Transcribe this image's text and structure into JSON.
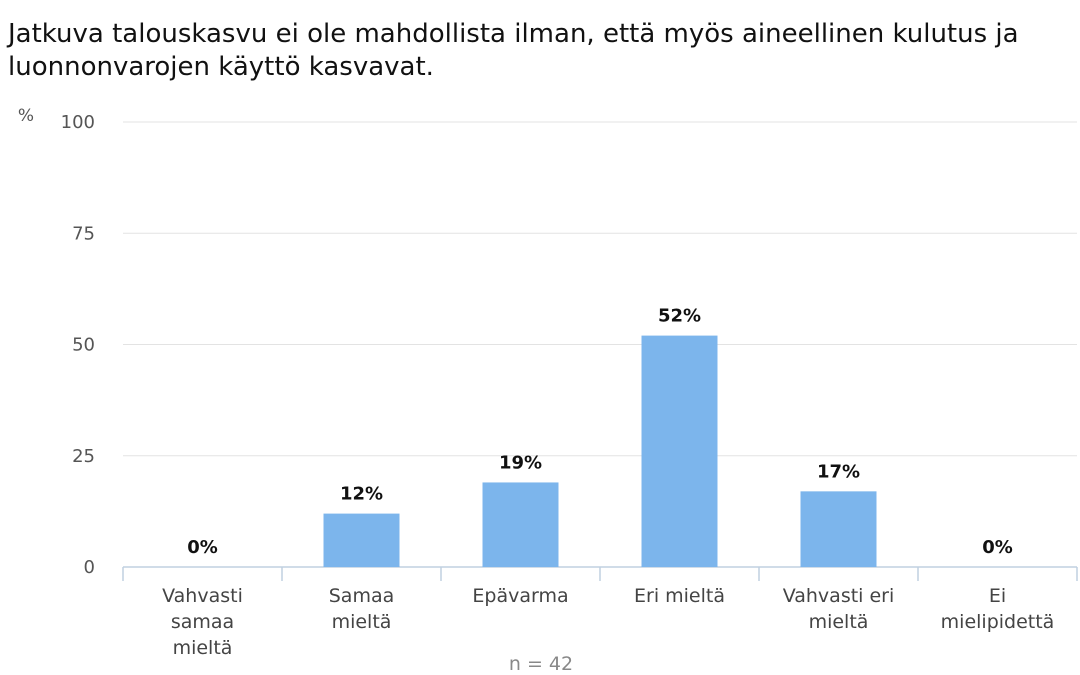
{
  "chart_data": {
    "type": "bar",
    "title": "Jatkuva talouskasvu ei ole mahdollista ilman, että myös aineellinen kulutus ja luonnonvarojen käyttö kasvavat.",
    "ylabel": "%",
    "ylim": [
      0,
      100
    ],
    "yticks": [
      0,
      25,
      50,
      75,
      100
    ],
    "grid": true,
    "categories": [
      [
        "Vahvasti",
        "samaa",
        "mieltä"
      ],
      [
        "Samaa",
        "mieltä"
      ],
      [
        "Epävarma"
      ],
      [
        "Eri mieltä"
      ],
      [
        "Vahvasti eri",
        "mieltä"
      ],
      [
        "Ei",
        "mielipidettä"
      ]
    ],
    "values": [
      0,
      12,
      19,
      52,
      17,
      0
    ],
    "data_labels": [
      "0%",
      "12%",
      "19%",
      "52%",
      "17%",
      "0%"
    ],
    "bar_color": "#7cb5ec",
    "note": "n = 42"
  }
}
